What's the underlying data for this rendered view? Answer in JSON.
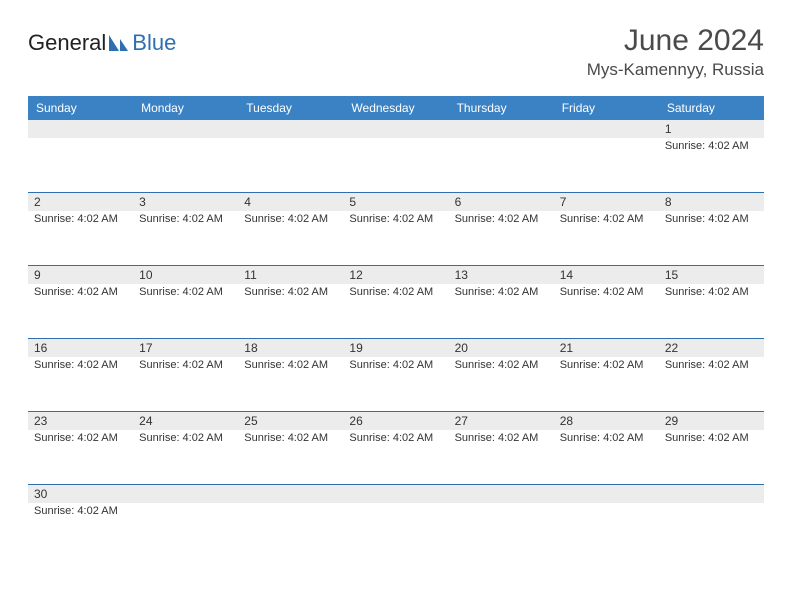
{
  "logo": {
    "text1": "General",
    "text2": "Blue"
  },
  "title": {
    "month": "June 2024",
    "location": "Mys-Kamennyy, Russia"
  },
  "colors": {
    "header_bg": "#3b82c4",
    "header_text": "#ffffff",
    "rule": "#2f6fb0",
    "daynum_bg": "#ececec",
    "text": "#333333",
    "logo_blue": "#2f6fb0"
  },
  "fonts": {
    "month_size": 30,
    "location_size": 17,
    "dayhead_size": 12,
    "daynum_size": 12,
    "sunrise_size": 11
  },
  "day_labels": [
    "Sunday",
    "Monday",
    "Tuesday",
    "Wednesday",
    "Thursday",
    "Friday",
    "Saturday"
  ],
  "weeks": [
    [
      {
        "n": "",
        "s": ""
      },
      {
        "n": "",
        "s": ""
      },
      {
        "n": "",
        "s": ""
      },
      {
        "n": "",
        "s": ""
      },
      {
        "n": "",
        "s": ""
      },
      {
        "n": "",
        "s": ""
      },
      {
        "n": "1",
        "s": "Sunrise: 4:02 AM"
      }
    ],
    [
      {
        "n": "2",
        "s": "Sunrise: 4:02 AM"
      },
      {
        "n": "3",
        "s": "Sunrise: 4:02 AM"
      },
      {
        "n": "4",
        "s": "Sunrise: 4:02 AM"
      },
      {
        "n": "5",
        "s": "Sunrise: 4:02 AM"
      },
      {
        "n": "6",
        "s": "Sunrise: 4:02 AM"
      },
      {
        "n": "7",
        "s": "Sunrise: 4:02 AM"
      },
      {
        "n": "8",
        "s": "Sunrise: 4:02 AM"
      }
    ],
    [
      {
        "n": "9",
        "s": "Sunrise: 4:02 AM"
      },
      {
        "n": "10",
        "s": "Sunrise: 4:02 AM"
      },
      {
        "n": "11",
        "s": "Sunrise: 4:02 AM"
      },
      {
        "n": "12",
        "s": "Sunrise: 4:02 AM"
      },
      {
        "n": "13",
        "s": "Sunrise: 4:02 AM"
      },
      {
        "n": "14",
        "s": "Sunrise: 4:02 AM"
      },
      {
        "n": "15",
        "s": "Sunrise: 4:02 AM"
      }
    ],
    [
      {
        "n": "16",
        "s": "Sunrise: 4:02 AM"
      },
      {
        "n": "17",
        "s": "Sunrise: 4:02 AM"
      },
      {
        "n": "18",
        "s": "Sunrise: 4:02 AM"
      },
      {
        "n": "19",
        "s": "Sunrise: 4:02 AM"
      },
      {
        "n": "20",
        "s": "Sunrise: 4:02 AM"
      },
      {
        "n": "21",
        "s": "Sunrise: 4:02 AM"
      },
      {
        "n": "22",
        "s": "Sunrise: 4:02 AM"
      }
    ],
    [
      {
        "n": "23",
        "s": "Sunrise: 4:02 AM"
      },
      {
        "n": "24",
        "s": "Sunrise: 4:02 AM"
      },
      {
        "n": "25",
        "s": "Sunrise: 4:02 AM"
      },
      {
        "n": "26",
        "s": "Sunrise: 4:02 AM"
      },
      {
        "n": "27",
        "s": "Sunrise: 4:02 AM"
      },
      {
        "n": "28",
        "s": "Sunrise: 4:02 AM"
      },
      {
        "n": "29",
        "s": "Sunrise: 4:02 AM"
      }
    ],
    [
      {
        "n": "30",
        "s": "Sunrise: 4:02 AM"
      },
      {
        "n": "",
        "s": ""
      },
      {
        "n": "",
        "s": ""
      },
      {
        "n": "",
        "s": ""
      },
      {
        "n": "",
        "s": ""
      },
      {
        "n": "",
        "s": ""
      },
      {
        "n": "",
        "s": ""
      }
    ]
  ]
}
